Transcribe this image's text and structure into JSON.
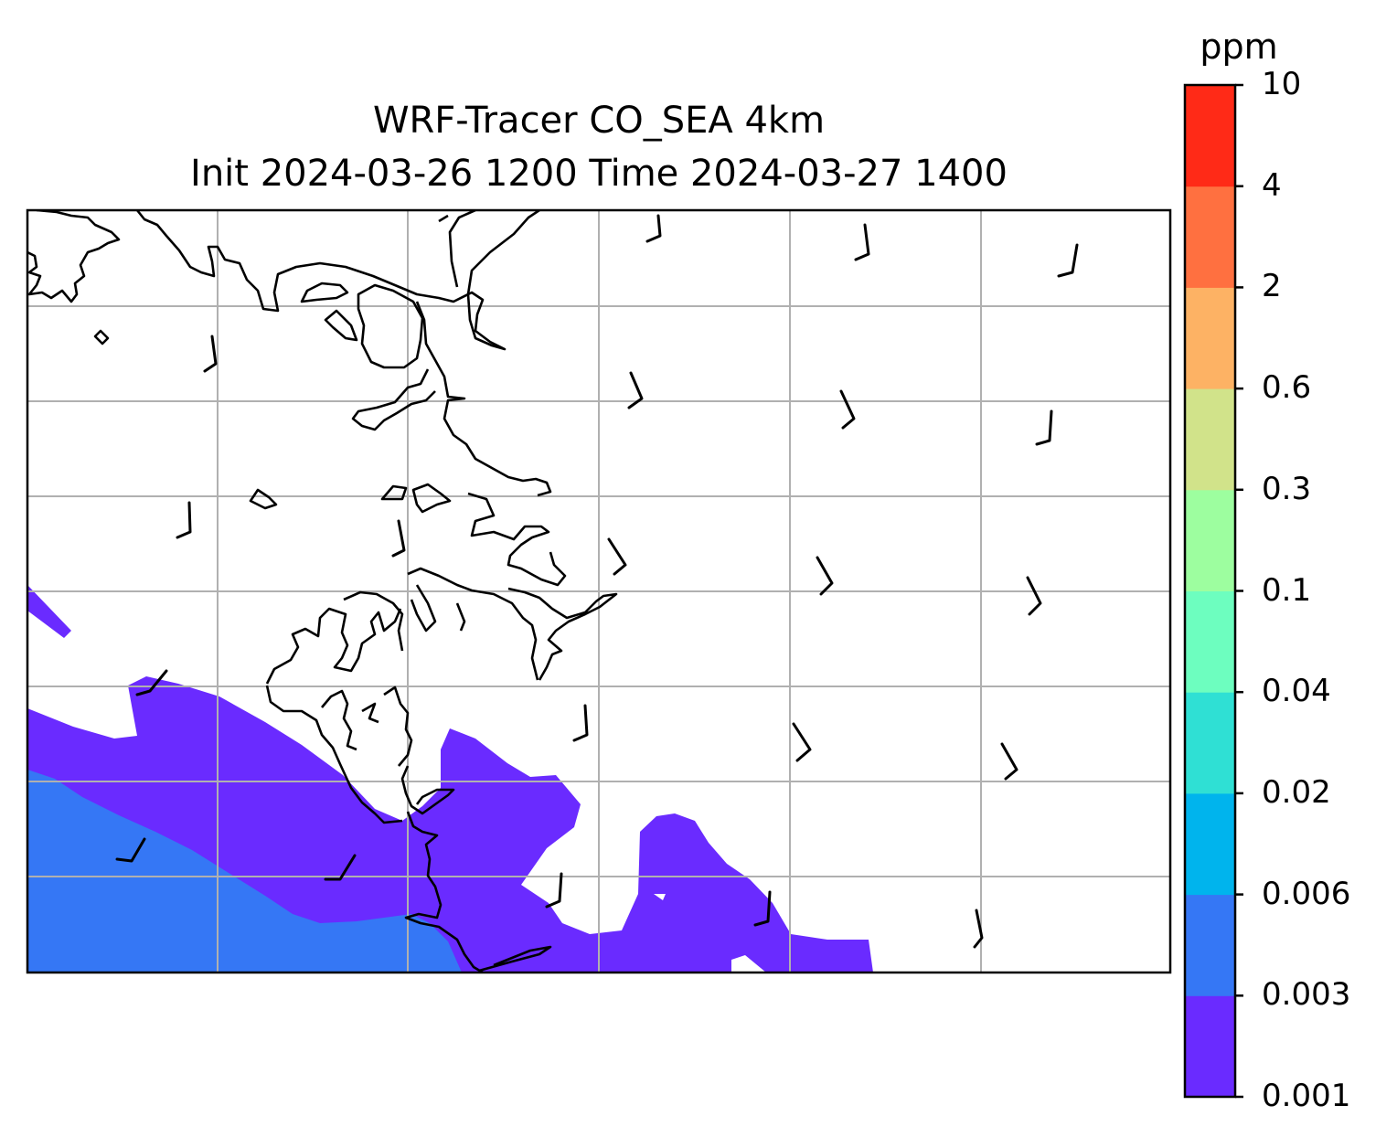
{
  "title_line1": "WRF-Tracer CO_SEA 4km",
  "title_line2": "Init 2024-03-26 1200 Time 2024-03-27 1400",
  "colorbar": {
    "units": "ppm",
    "tick_labels": [
      "0.001",
      "0.003",
      "0.006",
      "0.02",
      "0.04",
      "0.1",
      "0.3",
      "0.6",
      "2",
      "4",
      "10"
    ],
    "colors": [
      "#6a2bff",
      "#3577f5",
      "#00b4ed",
      "#2fe0d4",
      "#6dfebf",
      "#9dfe9f",
      "#d1e38a",
      "#fdb264",
      "#ff7040",
      "#ff2a17"
    ]
  },
  "map": {
    "coastline_color": "#000000",
    "gridline_color": "#b0b0b0",
    "barb_color": "#000000"
  }
}
